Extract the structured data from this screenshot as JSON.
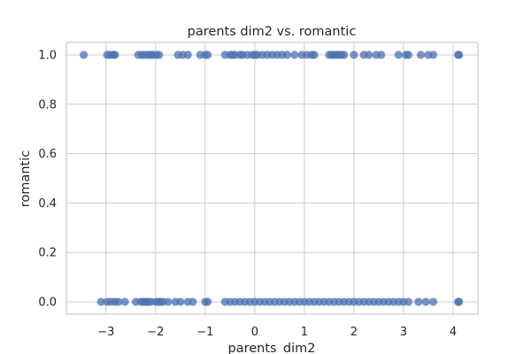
{
  "chart_data": {
    "type": "scatter",
    "title": "parents dim2 vs. romantic",
    "xlabel": "parents_dim2",
    "ylabel": "romantic",
    "xlim": [
      -3.8,
      4.5
    ],
    "ylim": [
      -0.05,
      1.05
    ],
    "xticks": [
      -3,
      -2,
      -1,
      0,
      1,
      2,
      3,
      4
    ],
    "xtick_labels": [
      "−3",
      "−2",
      "−1",
      "0",
      "1",
      "2",
      "3",
      "4"
    ],
    "yticks": [
      0.0,
      0.2,
      0.4,
      0.6,
      0.8,
      1.0
    ],
    "ytick_labels": [
      "0.0",
      "0.2",
      "0.4",
      "0.6",
      "0.8",
      "1.0"
    ],
    "grid": true,
    "point_color": "#4c72b0",
    "series": [
      {
        "x": [
          -3.45,
          -2.98,
          -2.92,
          -2.85,
          -2.82,
          -2.35,
          -2.28,
          -2.22,
          -2.15,
          -2.1,
          -2.05,
          -1.98,
          -1.93,
          -1.55,
          -1.45,
          -1.35,
          -1.1,
          -1.0,
          -0.95,
          -0.6,
          -0.5,
          -0.45,
          -0.4,
          -0.3,
          -0.25,
          -0.15,
          -0.05,
          0.0,
          0.05,
          0.15,
          0.25,
          0.35,
          0.45,
          0.55,
          0.65,
          0.8,
          0.95,
          1.05,
          1.15,
          1.2,
          1.5,
          1.55,
          1.6,
          1.65,
          1.7,
          1.75,
          1.8,
          2.0,
          2.2,
          2.3,
          2.45,
          2.55,
          2.9,
          3.05,
          3.1,
          3.35,
          3.5,
          3.6,
          4.1,
          4.12
        ],
        "y": [
          1,
          1,
          1,
          1,
          1,
          1,
          1,
          1,
          1,
          1,
          1,
          1,
          1,
          1,
          1,
          1,
          1,
          1,
          1,
          1,
          1,
          1,
          1,
          1,
          1,
          1,
          1,
          1,
          1,
          1,
          1,
          1,
          1,
          1,
          1,
          1,
          1,
          1,
          1,
          1,
          1,
          1,
          1,
          1,
          1,
          1,
          1,
          1,
          1,
          1,
          1,
          1,
          1,
          1,
          1,
          1,
          1,
          1,
          1,
          1
        ]
      },
      {
        "x": [
          -3.1,
          -2.98,
          -2.9,
          -2.82,
          -2.75,
          -2.62,
          -2.4,
          -2.3,
          -2.25,
          -2.2,
          -2.15,
          -2.1,
          -2.0,
          -1.95,
          -1.9,
          -1.85,
          -1.75,
          -1.6,
          -1.5,
          -1.35,
          -1.25,
          -1.0,
          -0.95,
          -0.6,
          -0.5,
          -0.4,
          -0.3,
          -0.2,
          -0.1,
          0.0,
          0.1,
          0.2,
          0.3,
          0.4,
          0.5,
          0.6,
          0.7,
          0.8,
          0.9,
          1.0,
          1.1,
          1.2,
          1.3,
          1.4,
          1.5,
          1.6,
          1.7,
          1.8,
          1.9,
          2.0,
          2.1,
          2.2,
          2.3,
          2.4,
          2.5,
          2.6,
          2.7,
          2.8,
          2.9,
          3.0,
          3.1,
          3.3,
          3.45,
          3.6,
          4.1,
          4.12
        ],
        "y": [
          0,
          0,
          0,
          0,
          0,
          0,
          0,
          0,
          0,
          0,
          0,
          0,
          0,
          0,
          0,
          0,
          0,
          0,
          0,
          0,
          0,
          0,
          0,
          0,
          0,
          0,
          0,
          0,
          0,
          0,
          0,
          0,
          0,
          0,
          0,
          0,
          0,
          0,
          0,
          0,
          0,
          0,
          0,
          0,
          0,
          0,
          0,
          0,
          0,
          0,
          0,
          0,
          0,
          0,
          0,
          0,
          0,
          0,
          0,
          0,
          0,
          0,
          0,
          0,
          0,
          0
        ]
      }
    ]
  }
}
